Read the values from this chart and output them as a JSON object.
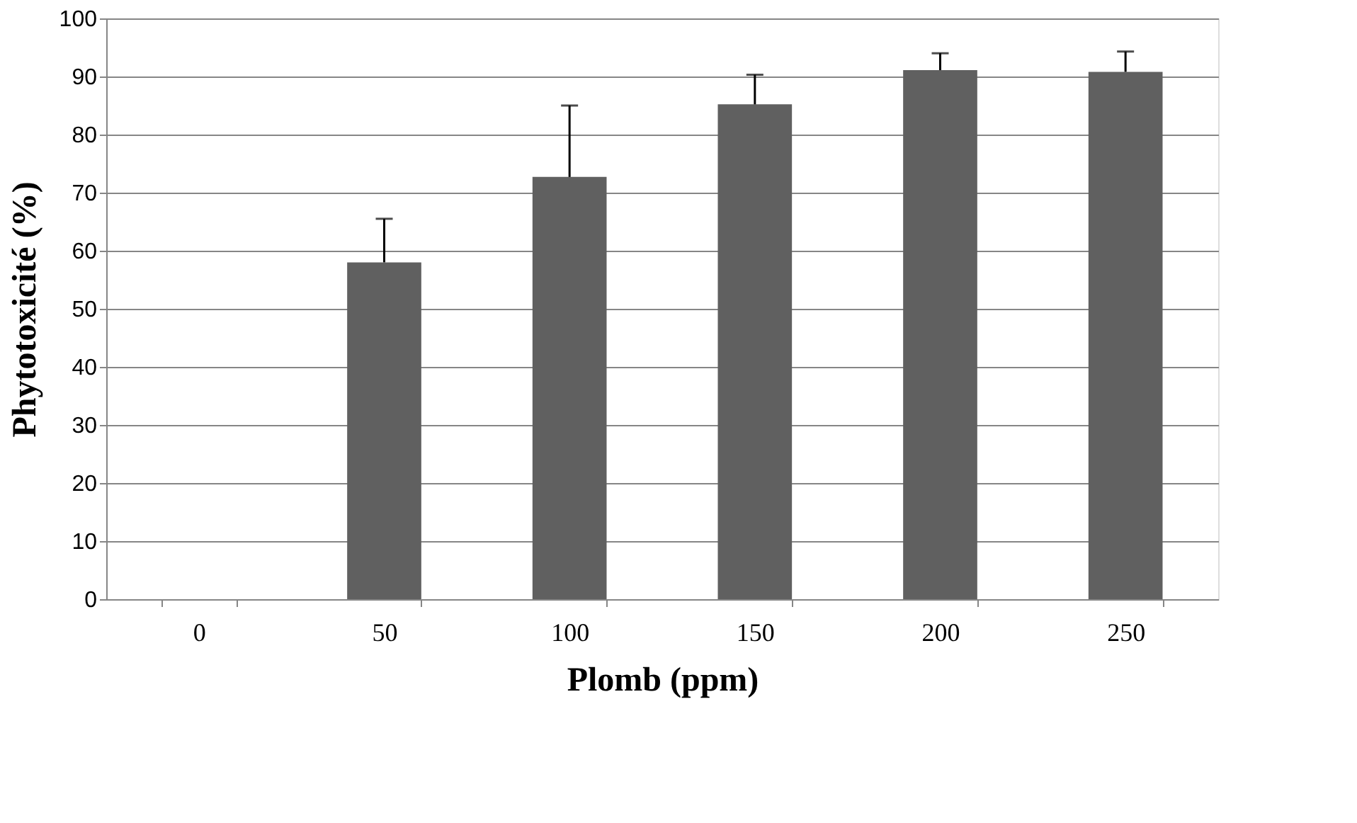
{
  "chart_data": {
    "type": "bar",
    "categories": [
      "0",
      "50",
      "100",
      "150",
      "200",
      "250"
    ],
    "values": [
      0,
      58,
      72.7,
      85.2,
      91.1,
      90.8
    ],
    "errors": [
      null,
      [
        58,
        65.5
      ],
      [
        72.7,
        85
      ],
      [
        85.2,
        90.3
      ],
      [
        91.1,
        94
      ],
      [
        90.8,
        94.3
      ]
    ],
    "color": "#606060",
    "xlabel": "Plomb (ppm)",
    "ylabel": "Phytotoxicité (%)",
    "ylim": [
      0,
      100
    ],
    "yticks": [
      0,
      10,
      20,
      30,
      40,
      50,
      60,
      70,
      80,
      90,
      100
    ],
    "grid": "y"
  }
}
